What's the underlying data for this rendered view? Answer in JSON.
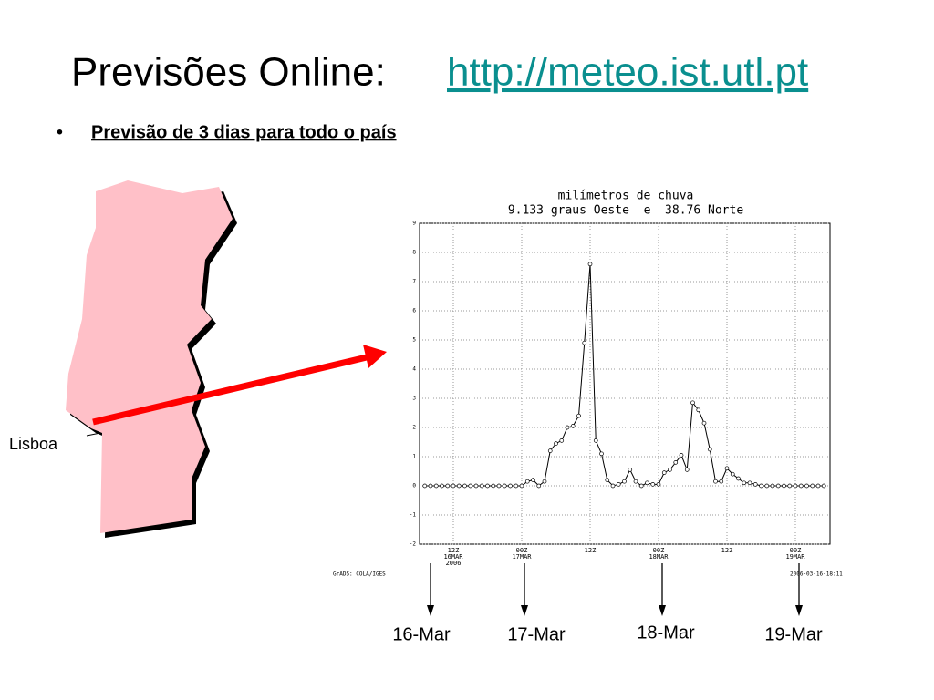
{
  "header": {
    "title": "Previsões Online:",
    "link": "http://meteo.ist.utl.pt"
  },
  "bullet": "Previsão de 3 dias para todo o país",
  "map_label": "Lisboa",
  "chart_data": {
    "type": "line",
    "title": "milímetros de chuva",
    "subtitle": "9.133 graus Oeste  e  38.76 Norte",
    "categories": [
      null,
      null,
      null,
      null,
      null,
      "12Z\n16MAR\n2006",
      null,
      null,
      null,
      null,
      null,
      null,
      null,
      null,
      null,
      null,
      null,
      "00Z\n17MAR",
      null,
      null,
      null,
      null,
      null,
      null,
      null,
      null,
      null,
      null,
      null,
      "12Z",
      null,
      null,
      null,
      null,
      null,
      null,
      null,
      null,
      null,
      null,
      null,
      "00Z\n18MAR",
      null,
      null,
      null,
      null,
      null,
      null,
      null,
      null,
      null,
      null,
      null,
      "12Z",
      null,
      null,
      null,
      null,
      null,
      null,
      null,
      null,
      null,
      null,
      null,
      "00Z\n19MAR",
      null,
      null,
      null,
      null,
      null
    ],
    "values": [
      0,
      0,
      0,
      0,
      0,
      0,
      0,
      0,
      0,
      0,
      0,
      0,
      0,
      0,
      0,
      0,
      0,
      0,
      0.15,
      0.2,
      0,
      0.15,
      1.2,
      1.45,
      1.55,
      2.0,
      2.05,
      2.4,
      4.9,
      7.6,
      1.55,
      1.1,
      0.2,
      0,
      0.05,
      0.15,
      0.55,
      0.15,
      0,
      0.1,
      0.05,
      0.05,
      0.45,
      0.55,
      0.8,
      1.05,
      0.55,
      2.85,
      2.6,
      2.15,
      1.25,
      0.15,
      0.15,
      0.6,
      0.4,
      0.25,
      0.1,
      0.1,
      0.05,
      0,
      0,
      0,
      0,
      0,
      0,
      0,
      0,
      0,
      0,
      0,
      0
    ],
    "color": "#000000",
    "ylim": [
      -2,
      9
    ],
    "yticks": [
      -2,
      -1,
      0,
      1,
      2,
      3,
      4,
      5,
      6,
      7,
      8,
      9
    ],
    "grid": true,
    "credit": "GrADS: COLA/IGES",
    "timestamp": "2006-03-16-18:11"
  },
  "date_labels": [
    "16-Mar",
    "17-Mar",
    "18-Mar",
    "19-Mar"
  ]
}
